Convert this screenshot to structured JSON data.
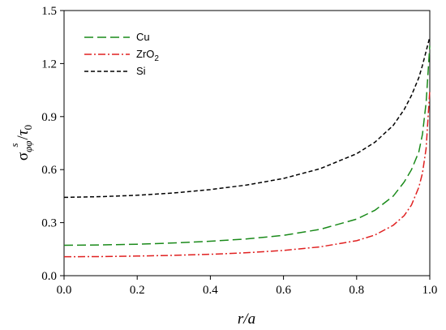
{
  "chart_data": {
    "type": "line",
    "xlabel": "r/a",
    "ylabel": {
      "sigma": "σ",
      "sub": "φφ",
      "sup": "s",
      "slash": "/",
      "tau": "τ",
      "tau_sub": "0"
    },
    "xlim": [
      0.0,
      1.0
    ],
    "ylim": [
      0.0,
      1.5
    ],
    "x_ticks": [
      "0.0",
      "0.2",
      "0.4",
      "0.6",
      "0.8",
      "1.0"
    ],
    "y_ticks": [
      "0.0",
      "0.3",
      "0.6",
      "0.9",
      "1.2",
      "1.5"
    ],
    "grid": false,
    "legend_position": "top-left",
    "series": [
      {
        "name": "Cu",
        "label_display": {
          "main": "Cu",
          "sub": ""
        },
        "color": "#1a8a1a",
        "dash": "long-dash",
        "x": [
          0.0,
          0.1,
          0.2,
          0.3,
          0.4,
          0.5,
          0.6,
          0.7,
          0.8,
          0.85,
          0.9,
          0.93,
          0.95,
          0.97,
          0.98,
          0.99,
          1.0
        ],
        "y": [
          0.172,
          0.174,
          0.178,
          0.185,
          0.195,
          0.208,
          0.228,
          0.262,
          0.32,
          0.37,
          0.45,
          0.53,
          0.6,
          0.7,
          0.8,
          0.98,
          1.3
        ]
      },
      {
        "name": "ZrO2",
        "label_display": {
          "main": "ZrO",
          "sub": "2"
        },
        "color": "#e02020",
        "dash": "dash-dot",
        "x": [
          0.0,
          0.1,
          0.2,
          0.3,
          0.4,
          0.5,
          0.6,
          0.7,
          0.8,
          0.85,
          0.9,
          0.93,
          0.95,
          0.97,
          0.98,
          0.99,
          1.0
        ],
        "y": [
          0.107,
          0.108,
          0.111,
          0.115,
          0.121,
          0.13,
          0.143,
          0.163,
          0.198,
          0.23,
          0.285,
          0.34,
          0.4,
          0.5,
          0.58,
          0.72,
          1.05
        ]
      },
      {
        "name": "Si",
        "label_display": {
          "main": "Si",
          "sub": ""
        },
        "color": "#000000",
        "dash": "short-dash",
        "x": [
          0.0,
          0.1,
          0.2,
          0.3,
          0.4,
          0.5,
          0.6,
          0.7,
          0.8,
          0.85,
          0.9,
          0.93,
          0.95,
          0.97,
          0.98,
          0.99,
          1.0
        ],
        "y": [
          0.443,
          0.447,
          0.455,
          0.468,
          0.487,
          0.513,
          0.55,
          0.605,
          0.69,
          0.755,
          0.85,
          0.94,
          1.02,
          1.12,
          1.19,
          1.27,
          1.35
        ]
      }
    ]
  }
}
